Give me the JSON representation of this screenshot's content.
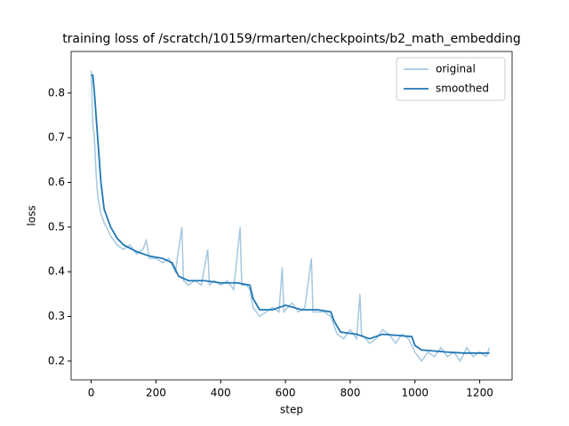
{
  "chart_data": {
    "type": "line",
    "title": "training loss of /scratch/10159/rmarten/checkpoints/b2_math_embedding",
    "xlabel": "step",
    "ylabel": "loss",
    "xlim": [
      -62,
      1300
    ],
    "ylim": [
      0.158,
      0.893
    ],
    "xticks": [
      0,
      200,
      400,
      600,
      800,
      1000,
      1200
    ],
    "yticks": [
      0.2,
      0.3,
      0.4,
      0.5,
      0.6,
      0.7,
      0.8
    ],
    "legend": "upper right",
    "series": [
      {
        "name": "original",
        "color": "#a6c8e0",
        "x": [
          0,
          5,
          10,
          15,
          20,
          30,
          40,
          60,
          80,
          100,
          120,
          140,
          160,
          170,
          180,
          200,
          220,
          240,
          260,
          280,
          285,
          300,
          320,
          340,
          360,
          365,
          380,
          400,
          420,
          440,
          460,
          465,
          480,
          490,
          500,
          520,
          540,
          560,
          580,
          590,
          595,
          620,
          640,
          660,
          680,
          685,
          700,
          720,
          740,
          750,
          760,
          780,
          800,
          820,
          830,
          835,
          860,
          880,
          900,
          920,
          940,
          960,
          980,
          1000,
          1020,
          1040,
          1060,
          1080,
          1100,
          1120,
          1140,
          1160,
          1180,
          1200,
          1220,
          1230
        ],
        "values": [
          0.85,
          0.73,
          0.7,
          0.62,
          0.57,
          0.53,
          0.51,
          0.48,
          0.46,
          0.45,
          0.46,
          0.44,
          0.45,
          0.47,
          0.43,
          0.43,
          0.42,
          0.43,
          0.4,
          0.5,
          0.38,
          0.37,
          0.38,
          0.37,
          0.45,
          0.37,
          0.38,
          0.37,
          0.38,
          0.36,
          0.5,
          0.37,
          0.37,
          0.36,
          0.32,
          0.3,
          0.31,
          0.32,
          0.31,
          0.41,
          0.31,
          0.33,
          0.31,
          0.32,
          0.43,
          0.31,
          0.31,
          0.31,
          0.3,
          0.28,
          0.26,
          0.25,
          0.27,
          0.25,
          0.35,
          0.26,
          0.24,
          0.25,
          0.27,
          0.26,
          0.24,
          0.26,
          0.25,
          0.22,
          0.2,
          0.22,
          0.21,
          0.23,
          0.21,
          0.22,
          0.2,
          0.23,
          0.21,
          0.22,
          0.21,
          0.23
        ]
      },
      {
        "name": "smoothed",
        "color": "#1f77b4",
        "x": [
          0,
          5,
          10,
          20,
          30,
          40,
          60,
          80,
          100,
          140,
          180,
          220,
          250,
          270,
          300,
          350,
          400,
          450,
          490,
          500,
          520,
          560,
          600,
          650,
          700,
          740,
          750,
          770,
          820,
          860,
          900,
          990,
          1000,
          1020,
          1100,
          1150,
          1230
        ],
        "values": [
          0.84,
          0.84,
          0.8,
          0.7,
          0.6,
          0.54,
          0.5,
          0.475,
          0.46,
          0.445,
          0.435,
          0.43,
          0.42,
          0.39,
          0.38,
          0.38,
          0.375,
          0.375,
          0.37,
          0.34,
          0.315,
          0.315,
          0.325,
          0.315,
          0.315,
          0.31,
          0.29,
          0.265,
          0.26,
          0.25,
          0.26,
          0.255,
          0.235,
          0.225,
          0.22,
          0.218,
          0.218
        ]
      }
    ]
  }
}
